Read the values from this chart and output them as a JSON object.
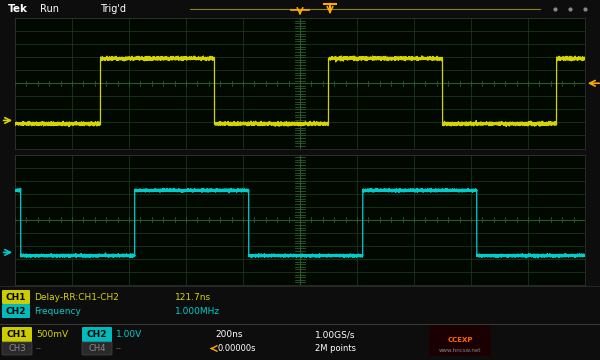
{
  "bg_color": "#0d0d0d",
  "grid_color": "#1f3d1f",
  "screen_bg": "#000800",
  "ch1_color": "#d4d400",
  "ch2_color": "#00cccc",
  "header_bg": "#1e1e1e",
  "ch1_label": "CH1",
  "ch2_label": "CH2",
  "ch3_label": "CH3",
  "ch4_label": "CH4",
  "ch1_scale": "500mV",
  "ch2_scale": "1.00V",
  "timebase": "200ns",
  "sample_rate": "1.00GS/s",
  "meas1_label": "Delay-RR:CH1-CH2",
  "meas1_value": "121.7ns",
  "meas2_label": "Frequency",
  "meas2_value": "1.000MHz",
  "points": "2M points",
  "trigger_pos": "0.00000s",
  "trigger_color": "#ffaa00",
  "ch1_box_color": "#cccc00",
  "ch2_box_color": "#00bbbb",
  "ch3_box_color": "#2a2a2a",
  "separator_color": "#2a2a2a"
}
